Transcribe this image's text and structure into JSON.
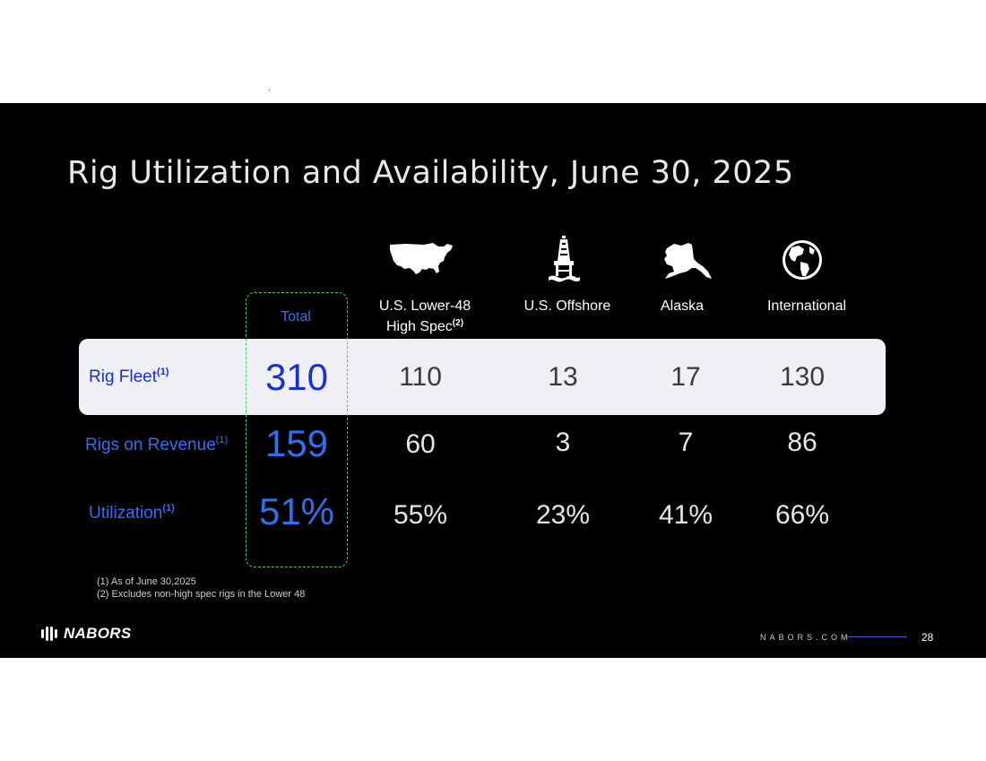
{
  "slide": {
    "title": "Rig Utilization and Availability, June 30, 2025",
    "columns": {
      "total": "Total",
      "lower48_line1": "U.S. Lower-48",
      "lower48_line2": "High Spec",
      "lower48_sup": "(2)",
      "offshore": "U.S. Offshore",
      "alaska": "Alaska",
      "international": "International"
    },
    "icons": [
      "usa-map-icon",
      "offshore-rig-icon",
      "alaska-map-icon",
      "globe-icon"
    ],
    "rows": {
      "fleet": {
        "label": "Rig Fleet",
        "sup": "(1)",
        "total": "310",
        "lower48": "110",
        "offshore": "13",
        "alaska": "17",
        "international": "130"
      },
      "revenue": {
        "label": "Rigs on Revenue",
        "sup": "(1)",
        "total": "159",
        "lower48": "60",
        "offshore": "3",
        "alaska": "7",
        "international": "86"
      },
      "utilization": {
        "label": "Utilization",
        "sup": "(1)",
        "total": "51%",
        "lower48": "55%",
        "offshore": "23%",
        "alaska": "41%",
        "international": "66%"
      }
    },
    "footnotes": {
      "note1": "(1)  As of June 30,2025",
      "note2": "(2)  Excludes non-high spec rigs in the Lower 48"
    },
    "footer": {
      "logo": "NABORS",
      "site": "NABORS.COM",
      "page": "28"
    },
    "colors": {
      "accent_blue": "#2f6ff0",
      "dark_blue": "#1a2fd0",
      "band": "#eef0f6",
      "dashed_box": "#3ad16a"
    }
  }
}
